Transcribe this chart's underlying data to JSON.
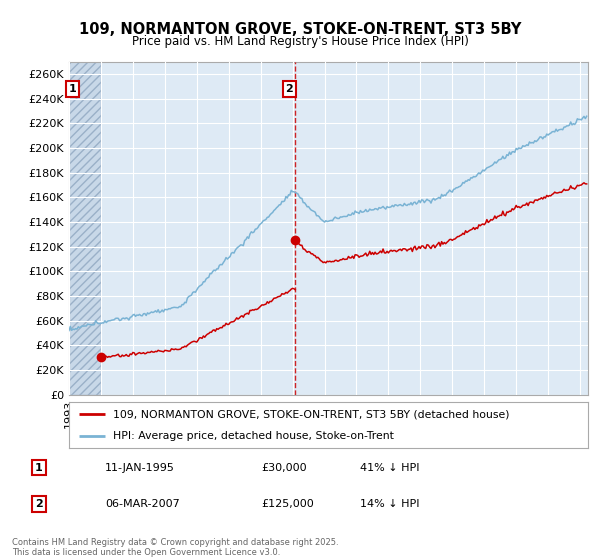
{
  "title": "109, NORMANTON GROVE, STOKE-ON-TRENT, ST3 5BY",
  "subtitle": "Price paid vs. HM Land Registry's House Price Index (HPI)",
  "ylim": [
    0,
    270000
  ],
  "yticks": [
    0,
    20000,
    40000,
    60000,
    80000,
    100000,
    120000,
    140000,
    160000,
    180000,
    200000,
    220000,
    240000,
    260000
  ],
  "ytick_labels": [
    "£0",
    "£20K",
    "£40K",
    "£60K",
    "£80K",
    "£100K",
    "£120K",
    "£140K",
    "£160K",
    "£180K",
    "£200K",
    "£220K",
    "£240K",
    "£260K"
  ],
  "sale1_year": 1995.03,
  "sale1_price": 30000,
  "sale2_year": 2007.17,
  "sale2_price": 125000,
  "hpi_line_color": "#7ab3d4",
  "sale_line_color": "#cc0000",
  "vline_color": "#cc0000",
  "legend_label1": "109, NORMANTON GROVE, STOKE-ON-TRENT, ST3 5BY (detached house)",
  "legend_label2": "HPI: Average price, detached house, Stoke-on-Trent",
  "footer": "Contains HM Land Registry data © Crown copyright and database right 2025.\nThis data is licensed under the Open Government Licence v3.0.",
  "bg_color": "#ffffff",
  "plot_bg_color": "#deeaf5"
}
